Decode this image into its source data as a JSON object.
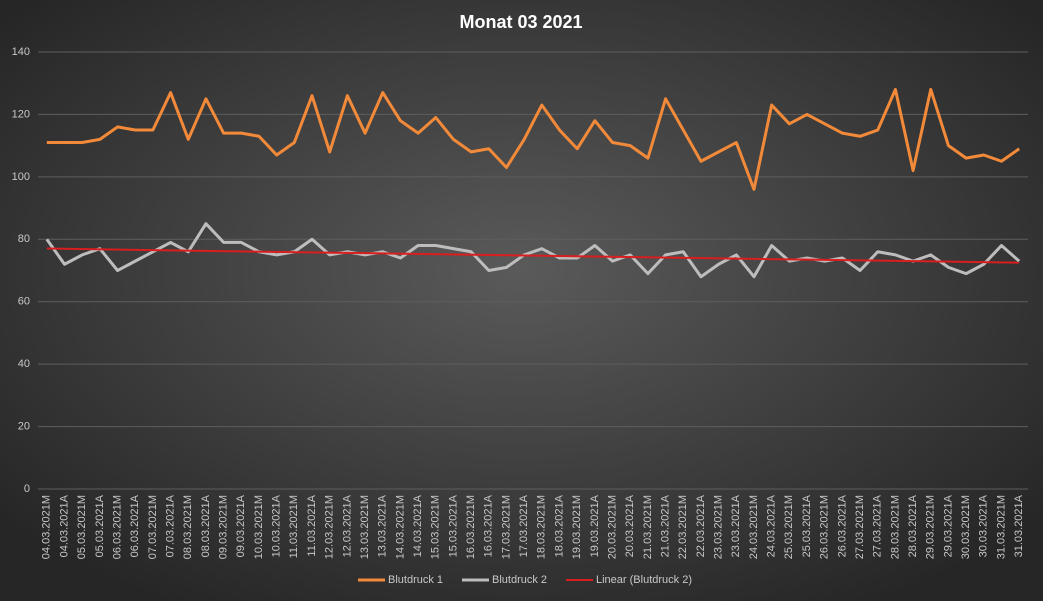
{
  "chart_data": {
    "type": "line",
    "title": "Monat 03 2021",
    "categories": [
      "04.03.2021M",
      "04.03.2021A",
      "05.03.2021M",
      "05.03.2021A",
      "06.03.2021M",
      "06.03.2021A",
      "07.03.2021M",
      "07.03.2021A",
      "08.03.2021M",
      "08.03.2021A",
      "09.03.2021M",
      "09.03.2021A",
      "10.03.2021M",
      "10.03.2021A",
      "11.03.2021M",
      "11.03.2021A",
      "12.03.2021M",
      "12.03.2021A",
      "13.03.2021M",
      "13.03.2021A",
      "14.03.2021M",
      "14.03.2021A",
      "15.03.2021M",
      "15.03.2021A",
      "16.03.2021M",
      "16.03.2021A",
      "17.03.2021M",
      "17.03.2021A",
      "18.03.2021M",
      "18.03.2021A",
      "19.03.2021M",
      "19.03.2021A",
      "20.03.2021M",
      "20.03.2021A",
      "21.03.2021M",
      "21.03.2021A",
      "22.03.2021M",
      "22.03.2021A",
      "23.03.2021M",
      "23.03.2021A",
      "24.03.2021M",
      "24.03.2021A",
      "25.03.2021M",
      "25.03.2021A",
      "26.03.2021M",
      "26.03.2021A",
      "27.03.2021M",
      "27.03.2021A",
      "28.03.2021M",
      "28.03.2021A",
      "29.03.2021M",
      "29.03.2021A",
      "30.03.2021M",
      "30.03.2021A",
      "31.03.2021M",
      "31.03.2021A"
    ],
    "series": [
      {
        "name": "Blutdruck 1",
        "color": "#f28a3a",
        "values": [
          111,
          111,
          111,
          112,
          116,
          115,
          115,
          127,
          112,
          125,
          114,
          114,
          113,
          107,
          111,
          126,
          108,
          126,
          114,
          127,
          118,
          114,
          119,
          112,
          108,
          109,
          103,
          112,
          123,
          115,
          109,
          118,
          111,
          110,
          106,
          125,
          115,
          105,
          108,
          111,
          96,
          123,
          117,
          120,
          117,
          114,
          113,
          115,
          128,
          102,
          128,
          110,
          106,
          107,
          105,
          109
        ]
      },
      {
        "name": "Blutdruck 2",
        "color": "#bdbdbd",
        "values": [
          80,
          72,
          75,
          77,
          70,
          73,
          76,
          79,
          76,
          85,
          79,
          79,
          76,
          75,
          76,
          80,
          75,
          76,
          75,
          76,
          74,
          78,
          78,
          77,
          76,
          70,
          71,
          75,
          77,
          74,
          74,
          78,
          73,
          75,
          69,
          75,
          76,
          68,
          72,
          75,
          68,
          78,
          73,
          74,
          73,
          74,
          70,
          76,
          75,
          73,
          75,
          71,
          69,
          72,
          78,
          73
        ],
        "trendline": {
          "type": "linear",
          "name": "Linear (Blutdruck 2)",
          "color": "#d81e1e"
        }
      }
    ],
    "ylim": [
      0,
      140
    ],
    "yticks": [
      0,
      20,
      40,
      60,
      80,
      100,
      120,
      140
    ],
    "grid": true,
    "legend": "bottom"
  }
}
